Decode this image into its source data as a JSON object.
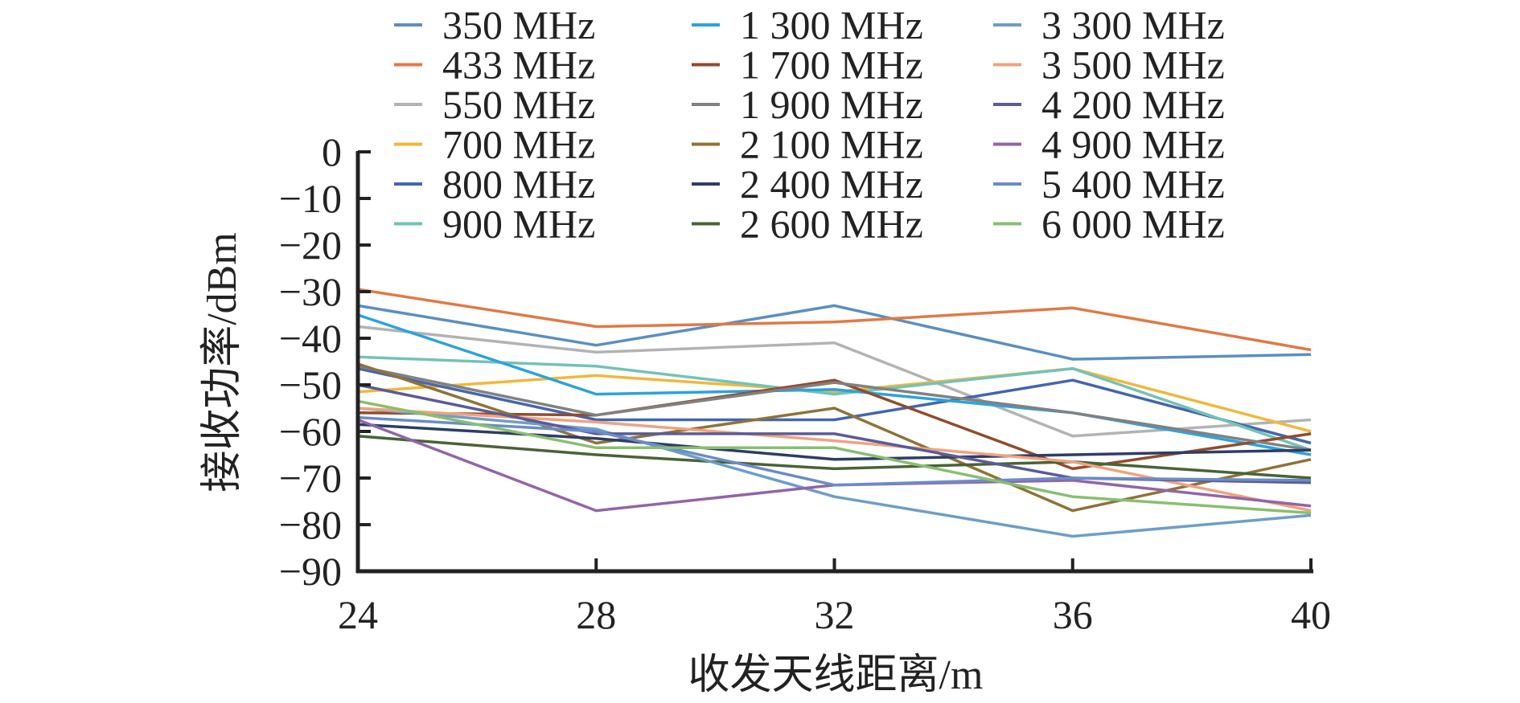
{
  "chart_data": {
    "type": "line",
    "xlabel": "收发天线距离/m",
    "ylabel": "接收功率/dBm",
    "x": [
      24,
      28,
      32,
      36,
      40
    ],
    "xlim": [
      24,
      40
    ],
    "ylim": [
      -90,
      0
    ],
    "x_ticks": [
      "24",
      "28",
      "32",
      "36",
      "40"
    ],
    "y_ticks": [
      "0",
      "−10",
      "−20",
      "−30",
      "−40",
      "−50",
      "−60",
      "−70",
      "−80",
      "−90"
    ],
    "grid": false,
    "legend_position": "top",
    "series": [
      {
        "name": "350 MHz",
        "color": "#5b8fc1",
        "values": [
          -33,
          -41.5,
          -33,
          -44.5,
          -43.5
        ]
      },
      {
        "name": "433 MHz",
        "color": "#e07a47",
        "values": [
          -29.5,
          -37.5,
          -36.5,
          -33.5,
          -42.5
        ]
      },
      {
        "name": "550 MHz",
        "color": "#b3b3b3",
        "values": [
          -37.5,
          -43,
          -41,
          -61,
          -57.5
        ]
      },
      {
        "name": "700 MHz",
        "color": "#f0b83e",
        "values": [
          -51.5,
          -48,
          -51.5,
          -46.5,
          -60
        ]
      },
      {
        "name": "800 MHz",
        "color": "#4466ad",
        "values": [
          -46.5,
          -57.5,
          -57.5,
          -49,
          -62.5
        ]
      },
      {
        "name": "900 MHz",
        "color": "#73c2b8",
        "values": [
          -44,
          -46,
          -52,
          -46.5,
          -64
        ]
      },
      {
        "name": "1 300 MHz",
        "color": "#2ba3dd",
        "values": [
          -35,
          -52,
          -51,
          -56,
          -65
        ]
      },
      {
        "name": "1 700 MHz",
        "color": "#924b2e",
        "values": [
          -56,
          -56.5,
          -49,
          -68,
          -60.5
        ]
      },
      {
        "name": "1 900 MHz",
        "color": "#818181",
        "values": [
          -46,
          -56.5,
          -49.5,
          -56,
          -64
        ]
      },
      {
        "name": "2 100 MHz",
        "color": "#8e7338",
        "values": [
          -45.5,
          -62.5,
          -55,
          -77,
          -66
        ]
      },
      {
        "name": "2 400 MHz",
        "color": "#2e3d65",
        "values": [
          -58.5,
          -61.5,
          -66,
          -65,
          -64
        ]
      },
      {
        "name": "2 600 MHz",
        "color": "#496335",
        "values": [
          -61,
          -65,
          -68,
          -66.5,
          -70
        ]
      },
      {
        "name": "3 300 MHz",
        "color": "#6e9ec9",
        "values": [
          -55,
          -59.5,
          -74,
          -82.5,
          -78
        ]
      },
      {
        "name": "3 500 MHz",
        "color": "#efa37f",
        "values": [
          -55,
          -58,
          -62,
          -66.5,
          -77
        ]
      },
      {
        "name": "4 200 MHz",
        "color": "#5b5b98",
        "values": [
          -50,
          -60.5,
          -60.5,
          -70,
          -71
        ]
      },
      {
        "name": "4 900 MHz",
        "color": "#9265a8",
        "values": [
          -57.5,
          -77,
          -71.5,
          -70.5,
          -76
        ]
      },
      {
        "name": "5 400 MHz",
        "color": "#6b8cc7",
        "values": [
          -57,
          -60,
          -71.5,
          -70,
          -70.5
        ]
      },
      {
        "name": "6 000 MHz",
        "color": "#88bf6f",
        "values": [
          -53.5,
          -63.5,
          -63.5,
          -74,
          -77.5
        ]
      }
    ]
  }
}
